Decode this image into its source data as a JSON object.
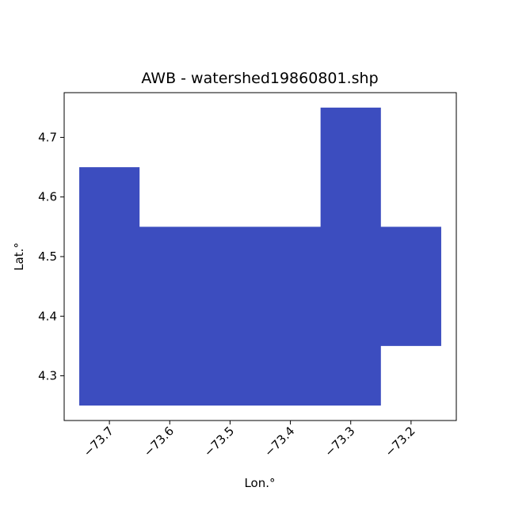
{
  "chart_data": {
    "type": "map",
    "title": "AWB - watershed19860801.shp",
    "xlabel": "Lon.°",
    "ylabel": "Lat.°",
    "xlim": [
      -73.775,
      -73.125
    ],
    "ylim": [
      4.225,
      4.775
    ],
    "xticks": [
      {
        "value": -73.7,
        "label": "−73.7"
      },
      {
        "value": -73.6,
        "label": "−73.6"
      },
      {
        "value": -73.5,
        "label": "−73.5"
      },
      {
        "value": -73.4,
        "label": "−73.4"
      },
      {
        "value": -73.3,
        "label": "−73.3"
      },
      {
        "value": -73.2,
        "label": "−73.2"
      }
    ],
    "yticks": [
      {
        "value": 4.3,
        "label": "4.3"
      },
      {
        "value": 4.4,
        "label": "4.4"
      },
      {
        "value": 4.5,
        "label": "4.5"
      },
      {
        "value": 4.6,
        "label": "4.6"
      },
      {
        "value": 4.7,
        "label": "4.7"
      }
    ],
    "grid": false,
    "fill_color": "#3c4dbf",
    "polygon": [
      [
        -73.75,
        4.25
      ],
      [
        -73.25,
        4.25
      ],
      [
        -73.25,
        4.35
      ],
      [
        -73.15,
        4.35
      ],
      [
        -73.15,
        4.55
      ],
      [
        -73.25,
        4.55
      ],
      [
        -73.25,
        4.75
      ],
      [
        -73.35,
        4.75
      ],
      [
        -73.35,
        4.55
      ],
      [
        -73.65,
        4.55
      ],
      [
        -73.65,
        4.65
      ],
      [
        -73.75,
        4.65
      ]
    ]
  }
}
